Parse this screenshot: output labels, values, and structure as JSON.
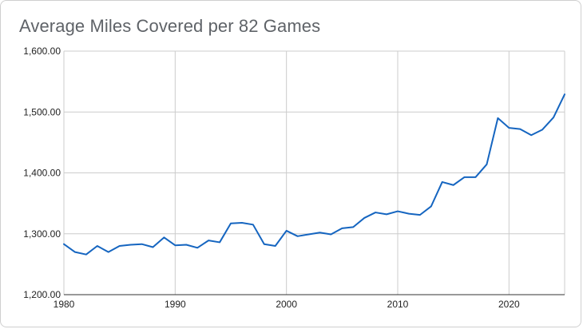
{
  "chart_data": {
    "type": "line",
    "title": "Average Miles Covered per 82 Games",
    "xlabel": "",
    "ylabel": "",
    "xlim": [
      1980,
      2025
    ],
    "ylim": [
      1200,
      1600
    ],
    "x_ticks": [
      "1980",
      "1990",
      "2000",
      "2010",
      "2020"
    ],
    "y_ticks": [
      "1,200.00",
      "1,300.00",
      "1,400.00",
      "1,500.00",
      "1,600.00"
    ],
    "grid": true,
    "legend": "none",
    "line_color": "#1565c0",
    "series": [
      {
        "x": [
          1980,
          1981,
          1982,
          1983,
          1984,
          1985,
          1986,
          1987,
          1988,
          1989,
          1990,
          1991,
          1992,
          1993,
          1994,
          1995,
          1996,
          1997,
          1998,
          1999,
          2000,
          2001,
          2002,
          2003,
          2004,
          2005,
          2006,
          2007,
          2008,
          2009,
          2010,
          2011,
          2012,
          2013,
          2014,
          2015,
          2016,
          2017,
          2018,
          2019,
          2020,
          2021,
          2022,
          2023,
          2024,
          2025
        ],
        "values": [
          1283,
          1270,
          1266,
          1280,
          1270,
          1280,
          1282,
          1283,
          1278,
          1294,
          1281,
          1282,
          1277,
          1289,
          1286,
          1317,
          1318,
          1315,
          1283,
          1280,
          1305,
          1296,
          1299,
          1302,
          1299,
          1309,
          1311,
          1326,
          1335,
          1332,
          1337,
          1333,
          1331,
          1345,
          1385,
          1380,
          1393,
          1393,
          1414,
          1490,
          1474,
          1472,
          1462,
          1471,
          1491,
          1529
        ]
      }
    ]
  }
}
